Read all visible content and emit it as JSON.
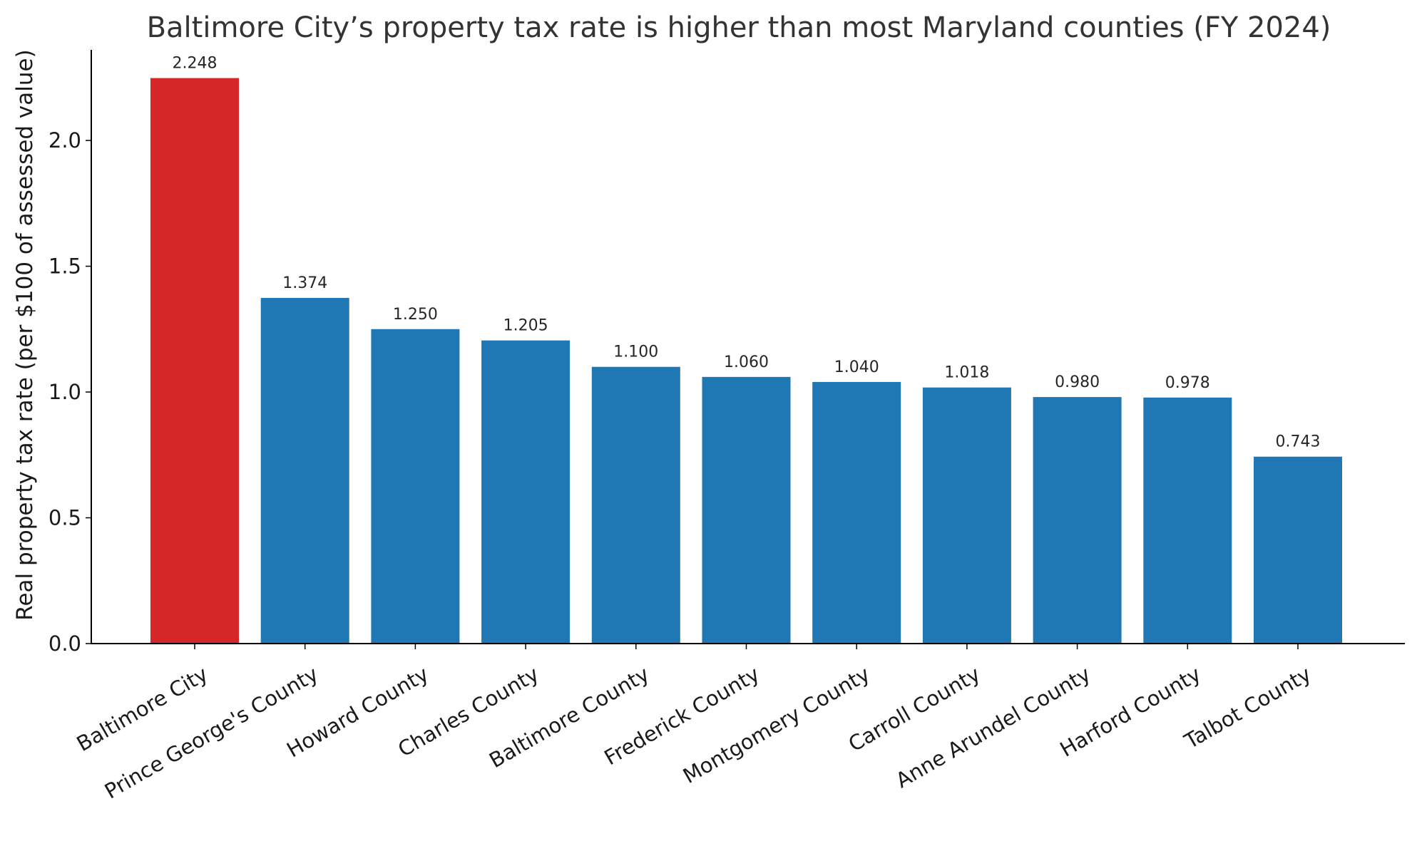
{
  "chart_data": {
    "type": "bar",
    "title": "Baltimore City’s property tax rate is higher than most Maryland counties (FY 2024)",
    "xlabel": "",
    "ylabel": "Real property tax rate (per $100 of assessed value)",
    "ylim": [
      0,
      2.36
    ],
    "yticks": [
      0.0,
      0.5,
      1.0,
      1.5,
      2.0
    ],
    "ytick_labels": [
      "0.0",
      "0.5",
      "1.0",
      "1.5",
      "2.0"
    ],
    "grid": false,
    "categories": [
      "Baltimore City",
      "Prince George's County",
      "Howard County",
      "Charles County",
      "Baltimore County",
      "Frederick County",
      "Montgomery County",
      "Carroll County",
      "Anne Arundel County",
      "Harford County",
      "Talbot County"
    ],
    "values": [
      2.248,
      1.374,
      1.25,
      1.205,
      1.1,
      1.06,
      1.04,
      1.018,
      0.98,
      0.978,
      0.743
    ],
    "value_labels": [
      "2.248",
      "1.374",
      "1.250",
      "1.205",
      "1.100",
      "1.060",
      "1.040",
      "1.018",
      "0.980",
      "0.978",
      "0.743"
    ],
    "colors": {
      "highlight": "#d62728",
      "default": "#1f77b4"
    },
    "highlight_index": 0
  }
}
